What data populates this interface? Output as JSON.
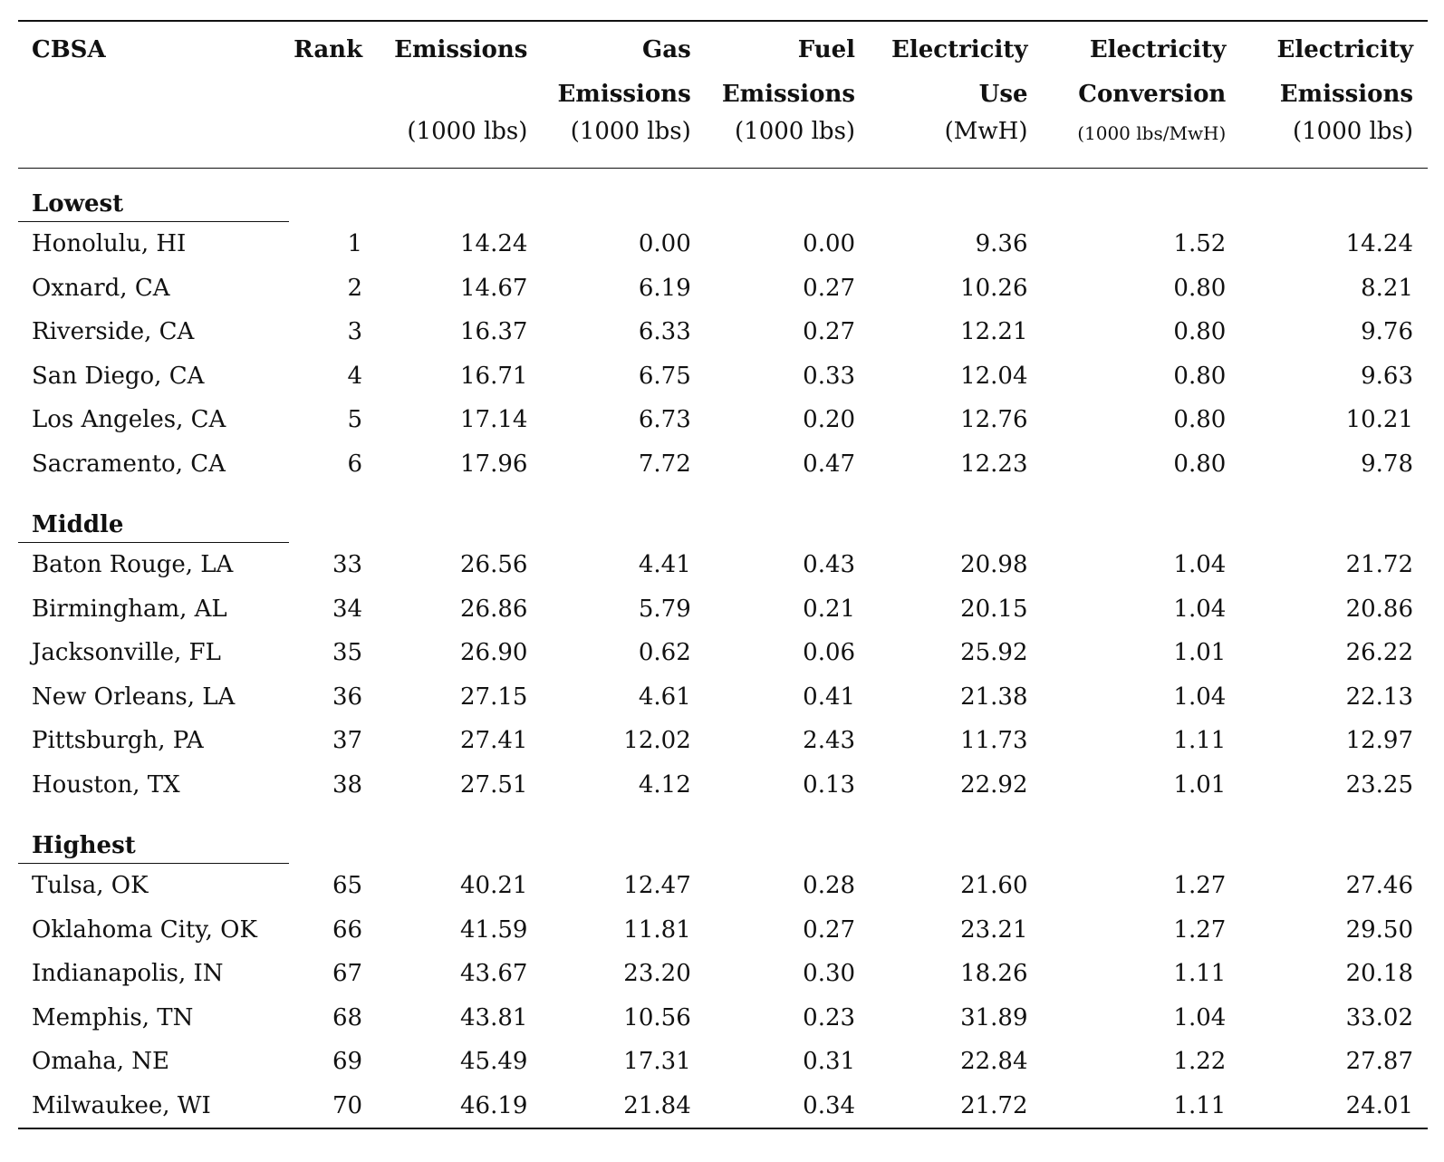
{
  "table": {
    "headers": [
      {
        "lines": [
          "CBSA",
          "",
          ""
        ]
      },
      {
        "lines": [
          "Rank",
          "",
          ""
        ]
      },
      {
        "lines": [
          "Emissions",
          "",
          "(1000 lbs)"
        ]
      },
      {
        "lines": [
          "Gas",
          "Emissions",
          "(1000 lbs)"
        ]
      },
      {
        "lines": [
          "Fuel",
          "Emissions",
          "(1000 lbs)"
        ]
      },
      {
        "lines": [
          "Electricity",
          "Use",
          "(MwH)"
        ]
      },
      {
        "lines": [
          "Electricity",
          "Conversion",
          "(1000 lbs/MwH)"
        ]
      },
      {
        "lines": [
          "Electricity",
          "Emissions",
          "(1000 lbs)"
        ]
      }
    ],
    "groups": [
      {
        "label": "Lowest",
        "rows": [
          [
            "Honolulu, HI",
            "1",
            "14.24",
            "0.00",
            "0.00",
            "9.36",
            "1.52",
            "14.24"
          ],
          [
            "Oxnard, CA",
            "2",
            "14.67",
            "6.19",
            "0.27",
            "10.26",
            "0.80",
            "8.21"
          ],
          [
            "Riverside, CA",
            "3",
            "16.37",
            "6.33",
            "0.27",
            "12.21",
            "0.80",
            "9.76"
          ],
          [
            "San Diego, CA",
            "4",
            "16.71",
            "6.75",
            "0.33",
            "12.04",
            "0.80",
            "9.63"
          ],
          [
            "Los Angeles, CA",
            "5",
            "17.14",
            "6.73",
            "0.20",
            "12.76",
            "0.80",
            "10.21"
          ],
          [
            "Sacramento, CA",
            "6",
            "17.96",
            "7.72",
            "0.47",
            "12.23",
            "0.80",
            "9.78"
          ]
        ]
      },
      {
        "label": "Middle",
        "rows": [
          [
            "Baton Rouge, LA",
            "33",
            "26.56",
            "4.41",
            "0.43",
            "20.98",
            "1.04",
            "21.72"
          ],
          [
            "Birmingham, AL",
            "34",
            "26.86",
            "5.79",
            "0.21",
            "20.15",
            "1.04",
            "20.86"
          ],
          [
            "Jacksonville, FL",
            "35",
            "26.90",
            "0.62",
            "0.06",
            "25.92",
            "1.01",
            "26.22"
          ],
          [
            "New Orleans, LA",
            "36",
            "27.15",
            "4.61",
            "0.41",
            "21.38",
            "1.04",
            "22.13"
          ],
          [
            "Pittsburgh, PA",
            "37",
            "27.41",
            "12.02",
            "2.43",
            "11.73",
            "1.11",
            "12.97"
          ],
          [
            "Houston, TX",
            "38",
            "27.51",
            "4.12",
            "0.13",
            "22.92",
            "1.01",
            "23.25"
          ]
        ]
      },
      {
        "label": "Highest",
        "rows": [
          [
            "Tulsa, OK",
            "65",
            "40.21",
            "12.47",
            "0.28",
            "21.60",
            "1.27",
            "27.46"
          ],
          [
            "Oklahoma City, OK",
            "66",
            "41.59",
            "11.81",
            "0.27",
            "23.21",
            "1.27",
            "29.50"
          ],
          [
            "Indianapolis, IN",
            "67",
            "43.67",
            "23.20",
            "0.30",
            "18.26",
            "1.11",
            "20.18"
          ],
          [
            "Memphis, TN",
            "68",
            "43.81",
            "10.56",
            "0.23",
            "31.89",
            "1.04",
            "33.02"
          ],
          [
            "Omaha, NE",
            "69",
            "45.49",
            "17.31",
            "0.31",
            "22.84",
            "1.22",
            "27.87"
          ],
          [
            "Milwaukee, WI",
            "70",
            "46.19",
            "21.84",
            "0.34",
            "21.72",
            "1.11",
            "24.01"
          ]
        ]
      }
    ]
  }
}
